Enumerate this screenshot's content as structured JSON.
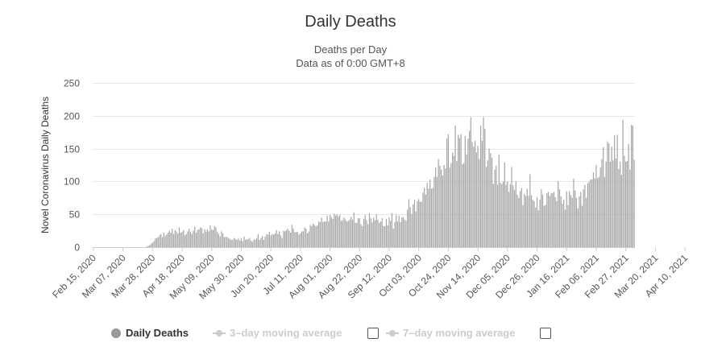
{
  "chart_data": {
    "type": "bar",
    "title": "Daily Deaths",
    "subtitle": [
      "Deaths per Day",
      "Data as of 0:00 GMT+8"
    ],
    "ylabel": "Novel Coronavirus Daily Deaths",
    "xlabel": "",
    "ylim": [
      0,
      250
    ],
    "yticks": [
      0,
      50,
      100,
      150,
      200,
      250
    ],
    "grid": true,
    "bar_color": "#a6a6a6",
    "start_date": "2020-02-15",
    "days_per_bar": 1,
    "x_tick_labels": [
      "Feb 15, 2020",
      "Mar 07, 2020",
      "Mar 28, 2020",
      "Apr 18, 2020",
      "May 09, 2020",
      "May 30, 2020",
      "Jun 20, 2020",
      "Jul 11, 2020",
      "Aug 01, 2020",
      "Aug 22, 2020",
      "Sep 12, 2020",
      "Oct 03, 2020",
      "Oct 24, 2020",
      "Nov 14, 2020",
      "Dec 05, 2020",
      "Dec 26, 2020",
      "Jan 16, 2021",
      "Feb 06, 2021",
      "Feb 27, 2021",
      "Mar 20, 2021",
      "Apr 10, 2021"
    ],
    "series": [
      {
        "name": "Daily Deaths",
        "values": [
          0,
          0,
          0,
          0,
          0,
          0,
          0,
          0,
          0,
          0,
          0,
          0,
          0,
          0,
          0,
          0,
          0,
          0,
          0,
          0,
          0,
          0,
          0,
          0,
          0,
          0,
          0,
          0,
          0,
          0,
          0,
          0,
          0,
          0,
          0,
          0,
          0,
          0,
          1,
          2,
          3,
          5,
          7,
          9,
          13,
          14,
          15,
          18,
          20,
          15,
          22,
          17,
          19,
          22,
          25,
          22,
          28,
          20,
          26,
          24,
          21,
          30,
          22,
          23,
          26,
          18,
          20,
          24,
          28,
          23,
          20,
          25,
          31,
          22,
          26,
          27,
          30,
          29,
          21,
          27,
          24,
          27,
          24,
          33,
          27,
          26,
          32,
          30,
          23,
          20,
          16,
          24,
          21,
          15,
          16,
          15,
          14,
          12,
          11,
          11,
          14,
          12,
          11,
          13,
          10,
          14,
          9,
          16,
          11,
          12,
          12,
          14,
          10,
          8,
          12,
          11,
          14,
          20,
          11,
          14,
          17,
          11,
          16,
          20,
          19,
          23,
          18,
          20,
          19,
          21,
          26,
          20,
          24,
          18,
          14,
          25,
          24,
          26,
          28,
          25,
          22,
          34,
          28,
          23,
          23,
          23,
          19,
          21,
          24,
          24,
          30,
          28,
          21,
          24,
          34,
          32,
          36,
          34,
          32,
          33,
          39,
          38,
          45,
          38,
          39,
          39,
          48,
          39,
          49,
          46,
          43,
          51,
          48,
          50,
          47,
          49,
          40,
          41,
          45,
          42,
          39,
          40,
          42,
          46,
          42,
          53,
          37,
          37,
          44,
          44,
          35,
          32,
          43,
          49,
          41,
          35,
          52,
          44,
          38,
          45,
          41,
          50,
          42,
          37,
          39,
          44,
          32,
          32,
          43,
          33,
          45,
          40,
          52,
          28,
          38,
          49,
          39,
          48,
          38,
          45,
          46,
          42,
          40,
          57,
          73,
          61,
          50,
          65,
          72,
          54,
          70,
          73,
          69,
          69,
          83,
          90,
          80,
          98,
          89,
          103,
          89,
          90,
          107,
          121,
          107,
          134,
          124,
          118,
          109,
          125,
          120,
          165,
          172,
          121,
          128,
          144,
          139,
          185,
          131,
          171,
          166,
          172,
          126,
          128,
          169,
          141,
          165,
          177,
          198,
          160,
          153,
          162,
          144,
          154,
          134,
          185,
          162,
          198,
          180,
          122,
          132,
          150,
          143,
          136,
          96,
          118,
          124,
          95,
          141,
          98,
          96,
          100,
          129,
          95,
          100,
          84,
          96,
          122,
          94,
          87,
          100,
          80,
          75,
          85,
          90,
          64,
          81,
          78,
          89,
          78,
          111,
          79,
          72,
          70,
          60,
          76,
          56,
          72,
          88,
          80,
          63,
          64,
          82,
          84,
          78,
          82,
          82,
          84,
          76,
          70,
          100,
          88,
          77,
          66,
          72,
          57,
          85,
          64,
          85,
          79,
          75,
          104,
          86,
          75,
          59,
          77,
          84,
          63,
          88,
          95,
          75,
          97,
          100,
          103,
          103,
          114,
          105,
          125,
          105,
          107,
          121,
          134,
          152,
          107,
          130,
          161,
          158,
          130,
          153,
          132,
          170,
          135,
          171,
          119,
          130,
          110,
          194,
          139,
          130,
          131,
          157,
          118,
          186,
          185,
          133
        ]
      }
    ],
    "legend": [
      {
        "label": "Daily Deaths",
        "active": true,
        "color": "#999999"
      },
      {
        "label": "3–day moving average",
        "active": false,
        "color": "#cccccc"
      },
      {
        "label": "7–day moving average",
        "active": false,
        "color": "#cccccc"
      }
    ]
  }
}
